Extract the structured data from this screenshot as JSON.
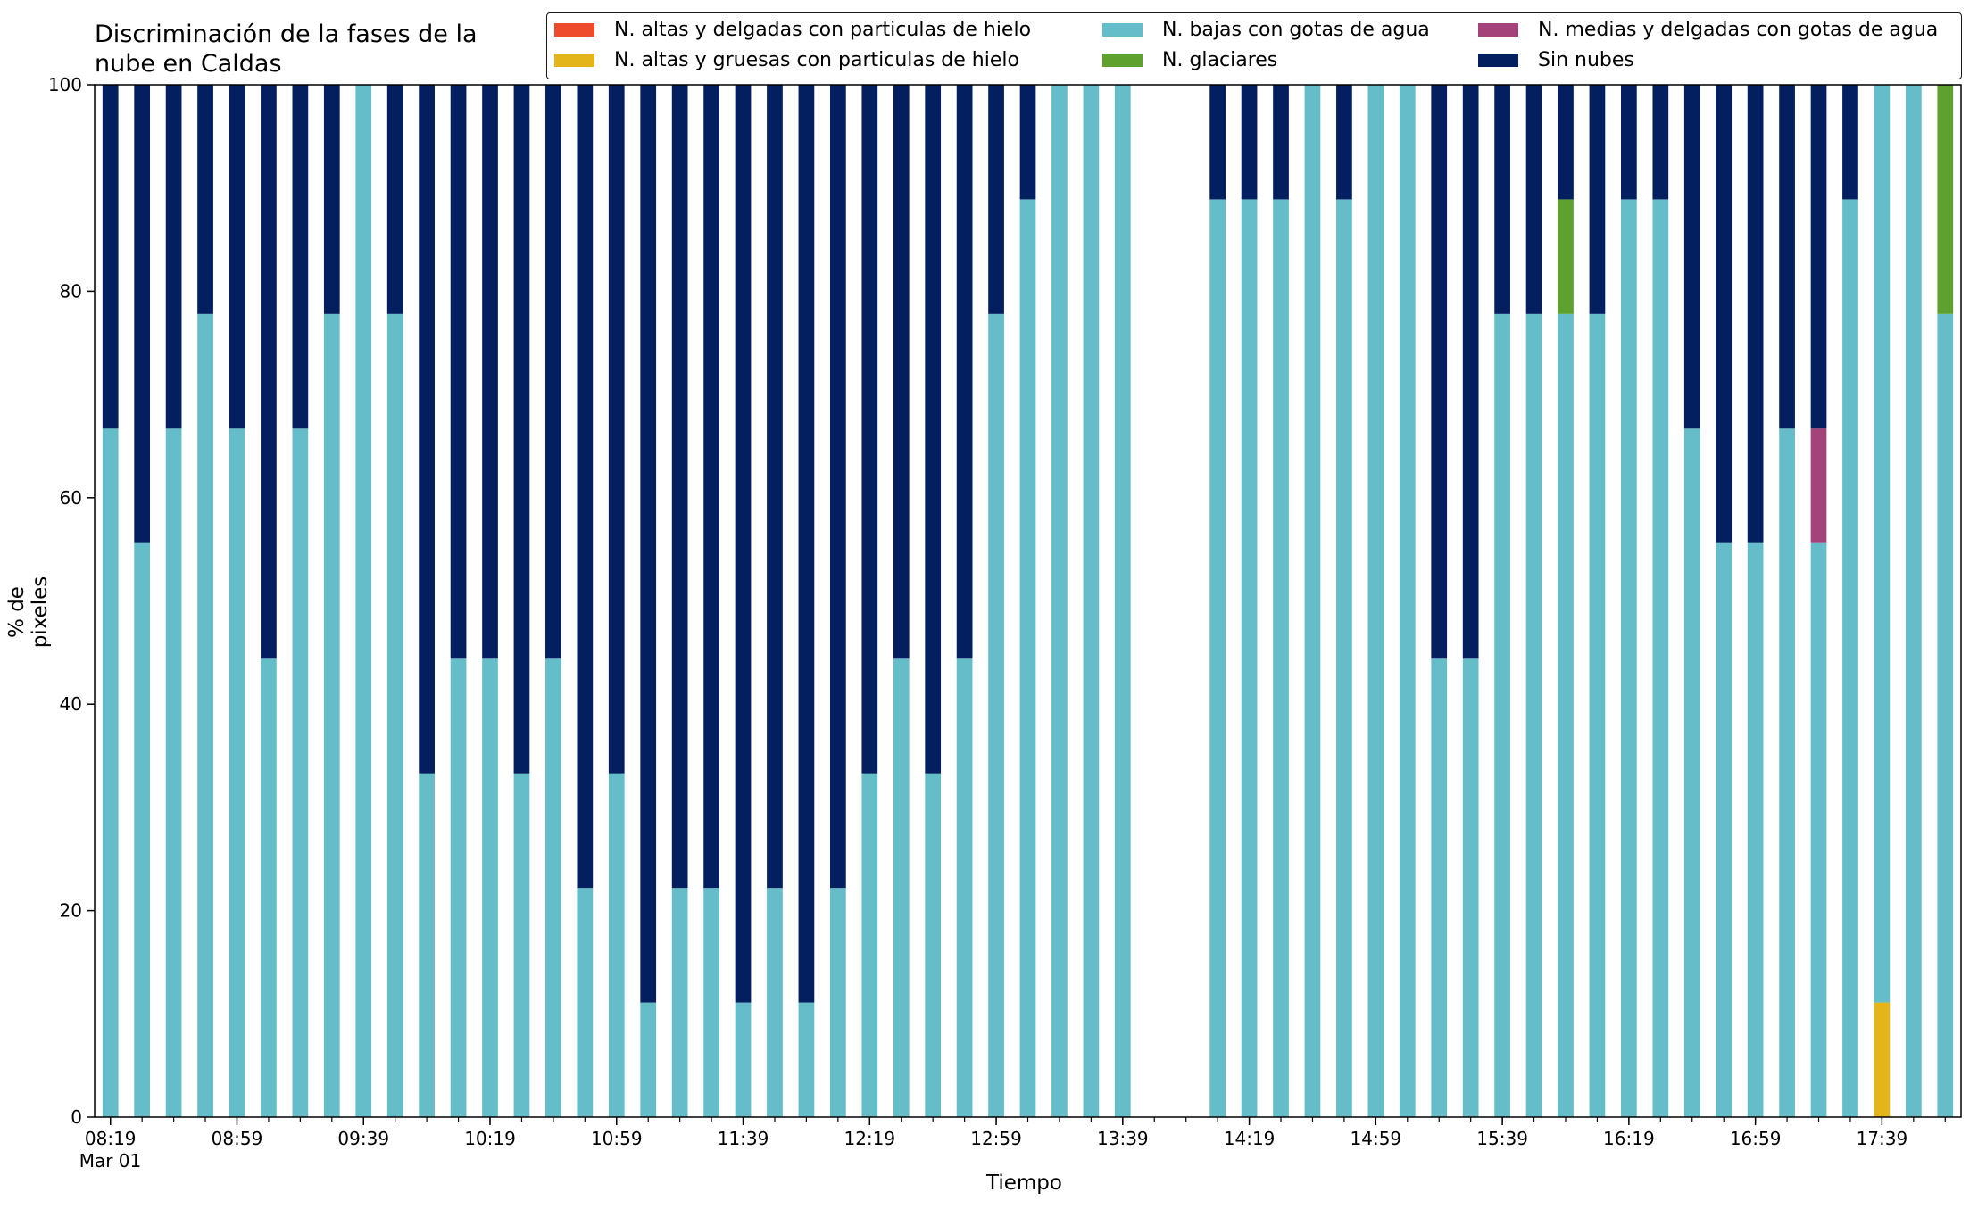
{
  "chart_data": {
    "type": "bar",
    "stacked": true,
    "title": "Discriminación de la fases de la\nnube en Caldas",
    "xlabel": "Tiempo",
    "ylabel": "% de pixeles",
    "ylim": [
      0,
      100
    ],
    "yticks": [
      0,
      20,
      40,
      60,
      80,
      100
    ],
    "xticks": [
      {
        "index": 0,
        "label": "08:19",
        "sublabel": "Mar 01"
      },
      {
        "index": 4,
        "label": "08:59"
      },
      {
        "index": 8,
        "label": "09:39"
      },
      {
        "index": 12,
        "label": "10:19"
      },
      {
        "index": 16,
        "label": "10:59"
      },
      {
        "index": 20,
        "label": "11:39"
      },
      {
        "index": 24,
        "label": "12:19"
      },
      {
        "index": 28,
        "label": "12:59"
      },
      {
        "index": 32,
        "label": "13:39"
      },
      {
        "index": 36,
        "label": "14:19"
      },
      {
        "index": 40,
        "label": "14:59"
      },
      {
        "index": 44,
        "label": "15:39"
      },
      {
        "index": 48,
        "label": "16:19"
      },
      {
        "index": 52,
        "label": "16:59"
      },
      {
        "index": 56,
        "label": "17:39"
      }
    ],
    "x_count": 59,
    "legend_position": "top-right",
    "series": [
      {
        "name": "N. altas y delgadas con particulas de hielo",
        "color": "#ee4a2c",
        "values": [
          0,
          0,
          0,
          0,
          0,
          0,
          0,
          0,
          0,
          0,
          0,
          0,
          0,
          0,
          0,
          0,
          0,
          0,
          0,
          0,
          0,
          0,
          0,
          0,
          0,
          0,
          0,
          0,
          0,
          0,
          0,
          0,
          0,
          0,
          0,
          0,
          0,
          0,
          0,
          0,
          0,
          0,
          0,
          0,
          0,
          0,
          0,
          0,
          0,
          0,
          0,
          0,
          0,
          0,
          0,
          0,
          0,
          0,
          0
        ]
      },
      {
        "name": "N. altas y gruesas con particulas de hielo",
        "color": "#e3b51b",
        "values": [
          0,
          0,
          0,
          0,
          0,
          0,
          0,
          0,
          0,
          0,
          0,
          0,
          0,
          0,
          0,
          0,
          0,
          0,
          0,
          0,
          0,
          0,
          0,
          0,
          0,
          0,
          0,
          0,
          0,
          0,
          0,
          0,
          0,
          0,
          0,
          0,
          0,
          0,
          0,
          0,
          0,
          0,
          0,
          0,
          0,
          0,
          0,
          0,
          0,
          0,
          0,
          0,
          0,
          0,
          0,
          0,
          11.1,
          0,
          0
        ]
      },
      {
        "name": "N. bajas con gotas de agua",
        "color": "#64bdc9",
        "values": [
          66.7,
          55.6,
          66.7,
          77.8,
          66.7,
          44.4,
          66.7,
          77.8,
          100,
          77.8,
          33.3,
          44.4,
          44.4,
          33.3,
          44.4,
          22.2,
          33.3,
          11.1,
          22.2,
          22.2,
          11.1,
          22.2,
          11.1,
          22.2,
          33.3,
          44.4,
          33.3,
          44.4,
          77.8,
          88.9,
          100,
          100,
          100,
          0,
          0,
          88.9,
          88.9,
          88.9,
          100,
          88.9,
          100,
          100,
          44.4,
          44.4,
          77.8,
          77.8,
          77.8,
          77.8,
          88.9,
          88.9,
          66.7,
          55.6,
          55.6,
          66.7,
          55.6,
          88.9,
          88.9,
          100,
          77.8
        ]
      },
      {
        "name": "N. glaciares",
        "color": "#5fa12f",
        "values": [
          0,
          0,
          0,
          0,
          0,
          0,
          0,
          0,
          0,
          0,
          0,
          0,
          0,
          0,
          0,
          0,
          0,
          0,
          0,
          0,
          0,
          0,
          0,
          0,
          0,
          0,
          0,
          0,
          0,
          0,
          0,
          0,
          0,
          0,
          0,
          0,
          0,
          0,
          0,
          0,
          0,
          0,
          0,
          0,
          0,
          0,
          11.1,
          0,
          0,
          0,
          0,
          0,
          0,
          0,
          0,
          0,
          0,
          0,
          22.2
        ]
      },
      {
        "name": "N. medias y delgadas con gotas de agua",
        "color": "#a4437a",
        "values": [
          0,
          0,
          0,
          0,
          0,
          0,
          0,
          0,
          0,
          0,
          0,
          0,
          0,
          0,
          0,
          0,
          0,
          0,
          0,
          0,
          0,
          0,
          0,
          0,
          0,
          0,
          0,
          0,
          0,
          0,
          0,
          0,
          0,
          0,
          0,
          0,
          0,
          0,
          0,
          0,
          0,
          0,
          0,
          0,
          0,
          0,
          0,
          0,
          0,
          0,
          0,
          0,
          0,
          0,
          11.1,
          0,
          0,
          0,
          0
        ]
      },
      {
        "name": "Sin nubes",
        "color": "#031f5f",
        "values": [
          33.3,
          44.4,
          33.3,
          22.2,
          33.3,
          55.6,
          33.3,
          22.2,
          0,
          22.2,
          66.7,
          55.6,
          55.6,
          66.7,
          55.6,
          77.8,
          66.7,
          88.9,
          77.8,
          77.8,
          88.9,
          77.8,
          88.9,
          77.8,
          66.7,
          55.6,
          66.7,
          55.6,
          22.2,
          11.1,
          0,
          0,
          0,
          0,
          0,
          11.1,
          11.1,
          11.1,
          0,
          11.1,
          0,
          0,
          55.6,
          55.6,
          22.2,
          22.2,
          11.1,
          22.2,
          11.1,
          11.1,
          33.3,
          44.4,
          44.4,
          33.3,
          33.3,
          11.1,
          0,
          0,
          0
        ]
      }
    ],
    "legend_order": [
      0,
      2,
      4,
      1,
      3,
      5
    ]
  }
}
